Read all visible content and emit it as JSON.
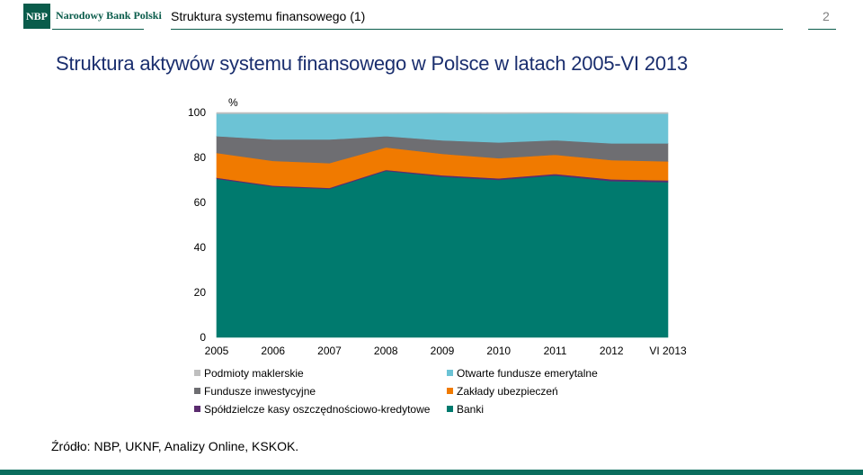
{
  "header": {
    "logo_mark": "NBP",
    "logo_text": "Narodowy Bank Polski",
    "slide_title": "Struktura systemu finansowego (1)",
    "page_number": "2"
  },
  "title": "Struktura aktywów systemu finansowego w Polsce w latach 2005-VI 2013",
  "source": "Źródło: NBP, UKNF, Analizy Online, KSKOK.",
  "colors": {
    "brand": "#0a5c4b",
    "title": "#1a2e6e"
  },
  "chart_data": {
    "type": "area",
    "stacked": true,
    "categories": [
      "2005",
      "2006",
      "2007",
      "2008",
      "2009",
      "2010",
      "2011",
      "2012",
      "VI 2013"
    ],
    "yunit": "%",
    "ylim": [
      0,
      100
    ],
    "yticks": [
      0,
      20,
      40,
      60,
      80,
      100
    ],
    "grid": false,
    "legend_position": "bottom",
    "series": [
      {
        "name": "Banki",
        "color": "#007A6E",
        "values": [
          70.5,
          67,
          66,
          74,
          71.5,
          70,
          72,
          69.5,
          69
        ]
      },
      {
        "name": "Spółdzielcze kasy oszczędnościowo-kredytowe",
        "color": "#5B2C6F",
        "values": [
          0.5,
          0.5,
          0.5,
          0.5,
          0.6,
          0.7,
          0.7,
          0.8,
          0.8
        ]
      },
      {
        "name": "Zakłady ubezpieczeń",
        "color": "#F07A00",
        "values": [
          11,
          11,
          11,
          10,
          9.5,
          9,
          8.5,
          8.5,
          8.5
        ]
      },
      {
        "name": "Fundusze inwestycyjne",
        "color": "#6E6E72",
        "values": [
          7.5,
          9.5,
          10.5,
          5,
          6,
          7,
          6.5,
          7.5,
          8
        ]
      },
      {
        "name": "Otwarte fundusze emerytalne",
        "color": "#6CC3D5",
        "values": [
          10,
          11.5,
          11.5,
          10,
          12,
          12.8,
          12,
          13.2,
          13.2
        ]
      },
      {
        "name": "Podmioty maklerskie",
        "color": "#BFBFBF",
        "values": [
          0.5,
          0.5,
          0.5,
          0.5,
          0.4,
          0.5,
          0.3,
          0.5,
          0.5
        ]
      }
    ]
  }
}
